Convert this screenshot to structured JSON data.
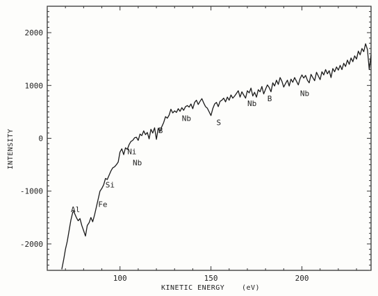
{
  "chart_data": {
    "type": "line",
    "title": "",
    "xlabel": "KINETIC ENERGY",
    "xunit": "(eV)",
    "ylabel": "INTENSITY",
    "xlim": [
      60,
      238
    ],
    "ylim": [
      -2500,
      2500
    ],
    "xticks": [
      100,
      150,
      200
    ],
    "xtick_labels": [
      "100",
      "150",
      "200"
    ],
    "yticks": [
      -2000,
      -1000,
      0,
      1000,
      2000
    ],
    "ytick_labels": [
      "-2000",
      "-1000",
      "0",
      "1000",
      "2000"
    ],
    "grid": false,
    "series": [
      {
        "x": [
          68,
          69,
          70,
          71,
          72,
          73,
          74,
          74.5,
          75,
          76,
          77,
          78,
          79,
          80,
          81,
          82,
          83,
          84,
          85,
          86,
          87,
          88,
          89,
          90,
          91,
          92,
          93,
          94,
          95,
          96,
          97,
          98,
          99,
          100,
          101,
          102,
          103,
          104,
          105,
          106,
          107,
          108,
          109,
          110,
          111,
          112,
          113,
          114,
          115,
          116,
          117,
          118,
          119,
          120,
          121,
          122,
          123,
          124,
          125,
          126,
          127,
          128,
          129,
          130,
          131,
          132,
          133,
          134,
          135,
          136,
          137,
          138,
          139,
          140,
          141,
          142,
          143,
          144,
          145,
          146,
          147,
          148,
          149,
          150,
          151,
          152,
          153,
          154,
          155,
          156,
          157,
          158,
          159,
          160,
          161,
          162,
          163,
          164,
          165,
          166,
          167,
          168,
          169,
          170,
          171,
          172,
          173,
          174,
          175,
          176,
          177,
          178,
          179,
          180,
          181,
          182,
          183,
          184,
          185,
          186,
          187,
          188,
          189,
          190,
          191,
          192,
          193,
          194,
          195,
          196,
          197,
          198,
          199,
          200,
          201,
          202,
          203,
          204,
          205,
          206,
          207,
          208,
          209,
          210,
          211,
          212,
          213,
          214,
          215,
          216,
          217,
          218,
          219,
          220,
          221,
          222,
          223,
          224,
          225,
          226,
          227,
          228,
          229,
          230,
          231,
          232,
          233,
          234,
          235,
          236,
          237,
          238
        ],
        "y": [
          -2480,
          -2300,
          -2100,
          -1950,
          -1750,
          -1550,
          -1400,
          -1380,
          -1420,
          -1500,
          -1560,
          -1520,
          -1650,
          -1750,
          -1850,
          -1650,
          -1600,
          -1500,
          -1580,
          -1450,
          -1300,
          -1150,
          -1000,
          -950,
          -880,
          -760,
          -780,
          -700,
          -620,
          -560,
          -540,
          -500,
          -450,
          -260,
          -200,
          -310,
          -180,
          -210,
          -120,
          -60,
          -40,
          10,
          20,
          -40,
          80,
          50,
          140,
          70,
          110,
          -10,
          170,
          100,
          200,
          -20,
          190,
          130,
          220,
          300,
          410,
          380,
          440,
          550,
          480,
          520,
          490,
          560,
          510,
          580,
          530,
          600,
          620,
          590,
          650,
          560,
          680,
          720,
          640,
          700,
          750,
          670,
          600,
          570,
          500,
          430,
          560,
          650,
          680,
          600,
          700,
          720,
          760,
          690,
          780,
          720,
          820,
          760,
          800,
          850,
          900,
          780,
          880,
          820,
          760,
          900,
          860,
          950,
          800,
          870,
          780,
          920,
          880,
          980,
          840,
          930,
          1010,
          960,
          880,
          1050,
          990,
          1100,
          1020,
          1150,
          1080,
          970,
          1040,
          1100,
          990,
          1120,
          1060,
          1150,
          1080,
          1010,
          1130,
          1200,
          1140,
          1190,
          1100,
          1050,
          1210,
          1150,
          1090,
          1250,
          1180,
          1110,
          1260,
          1200,
          1300,
          1220,
          1280,
          1150,
          1320,
          1260,
          1350,
          1290,
          1380,
          1300,
          1420,
          1360,
          1480,
          1400,
          1520,
          1450,
          1560,
          1500,
          1650,
          1580,
          1700,
          1640,
          1790,
          1680,
          1300,
          1580
        ]
      }
    ],
    "annotations": [
      {
        "text": "Al",
        "x": 73,
        "y": -1400
      },
      {
        "text": "Fe",
        "x": 88,
        "y": -1300
      },
      {
        "text": "Si",
        "x": 92,
        "y": -930
      },
      {
        "text": "Ni",
        "x": 104,
        "y": -300
      },
      {
        "text": "Nb",
        "x": 107,
        "y": -510
      },
      {
        "text": "B",
        "x": 121,
        "y": 100
      },
      {
        "text": "Nb",
        "x": 134,
        "y": 330
      },
      {
        "text": "S",
        "x": 153,
        "y": 250
      },
      {
        "text": "Nb",
        "x": 170,
        "y": 610
      },
      {
        "text": "B",
        "x": 181,
        "y": 700
      },
      {
        "text": "Nb",
        "x": 199,
        "y": 800
      }
    ]
  }
}
